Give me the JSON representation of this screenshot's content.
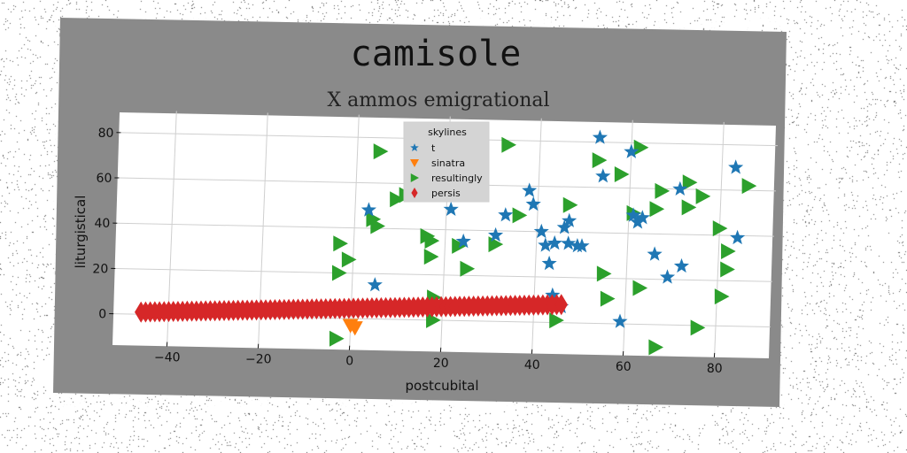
{
  "chart_data": {
    "type": "scatter",
    "title": "camisole",
    "subtitle": "X ammos emigrational",
    "xlabel": "postcubital",
    "ylabel": "liturgistical",
    "xlim": [
      -52,
      92
    ],
    "ylim": [
      -12,
      90
    ],
    "xticks": [
      -40,
      -20,
      0,
      20,
      40,
      60,
      80
    ],
    "yticks": [
      0,
      20,
      40,
      60,
      80
    ],
    "grid": true,
    "legend": {
      "title": "skylines",
      "position": "top-center"
    },
    "series": [
      {
        "name": "t",
        "marker": "star",
        "color": "#1f77b4",
        "points": [
          [
            3,
            48
          ],
          [
            5,
            15
          ],
          [
            21,
            49
          ],
          [
            24,
            35
          ],
          [
            31,
            38
          ],
          [
            33,
            47
          ],
          [
            38,
            58
          ],
          [
            39,
            52
          ],
          [
            41,
            40
          ],
          [
            42,
            34
          ],
          [
            43,
            26
          ],
          [
            44,
            35
          ],
          [
            46,
            42
          ],
          [
            47,
            45
          ],
          [
            47,
            35
          ],
          [
            49,
            34
          ],
          [
            50,
            34
          ],
          [
            53,
            82
          ],
          [
            54,
            65
          ],
          [
            60,
            76
          ],
          [
            61,
            48
          ],
          [
            62,
            45
          ],
          [
            63,
            47
          ],
          [
            66,
            31
          ],
          [
            69,
            21
          ],
          [
            71,
            60
          ],
          [
            72,
            26
          ],
          [
            83,
            70
          ],
          [
            84,
            39
          ],
          [
            59,
            1
          ],
          [
            44,
            12
          ],
          [
            46,
            7
          ]
        ]
      },
      {
        "name": "sinatra",
        "marker": "triangle_down",
        "color": "#ff7f0e",
        "points": [
          [
            0,
            -3
          ],
          [
            1,
            -4
          ]
        ]
      },
      {
        "name": "resultingly",
        "marker": "triangle_right",
        "color": "#2ca02c",
        "points": [
          [
            -3,
            33
          ],
          [
            -3,
            20
          ],
          [
            -1,
            26
          ],
          [
            -3,
            -9
          ],
          [
            5,
            74
          ],
          [
            4,
            44
          ],
          [
            5,
            41
          ],
          [
            9,
            53
          ],
          [
            11,
            55
          ],
          [
            16,
            37
          ],
          [
            17,
            35
          ],
          [
            17,
            28
          ],
          [
            18,
            10
          ],
          [
            18,
            0
          ],
          [
            23,
            33
          ],
          [
            25,
            23
          ],
          [
            31,
            34
          ],
          [
            33,
            78
          ],
          [
            36,
            47
          ],
          [
            45,
            1
          ],
          [
            47,
            52
          ],
          [
            53,
            72
          ],
          [
            55,
            22
          ],
          [
            56,
            11
          ],
          [
            58,
            66
          ],
          [
            61,
            49
          ],
          [
            62,
            78
          ],
          [
            63,
            16
          ],
          [
            66,
            51
          ],
          [
            67,
            59
          ],
          [
            67,
            -10
          ],
          [
            73,
            63
          ],
          [
            73,
            52
          ],
          [
            76,
            57
          ],
          [
            76,
            -1
          ],
          [
            80,
            43
          ],
          [
            81,
            13
          ],
          [
            82,
            25
          ],
          [
            82,
            33
          ],
          [
            86,
            62
          ]
        ]
      },
      {
        "name": "persis",
        "marker": "thin_diamond",
        "color": "#d62728",
        "line": {
          "x_from": -46,
          "x_to": 46,
          "y_from": 1,
          "y_to": 8,
          "count": 92
        }
      }
    ]
  }
}
